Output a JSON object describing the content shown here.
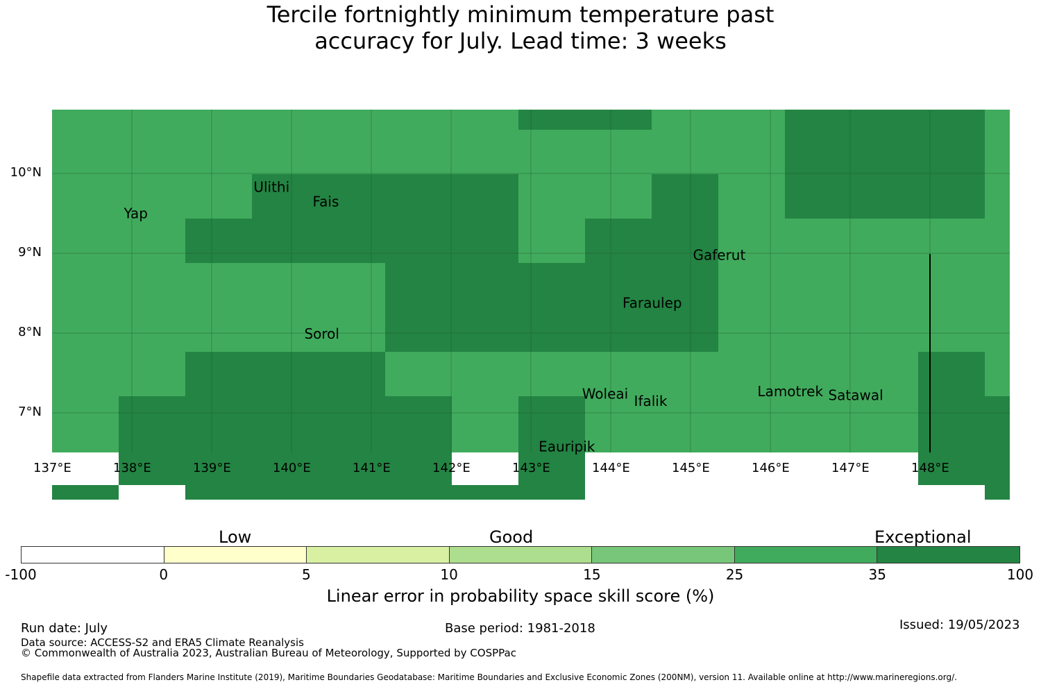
{
  "title": {
    "line1": "Tercile fortnightly minimum temperature past",
    "line2": "accuracy for July. Lead time: 3 weeks"
  },
  "colors": {
    "band_25_35": "#41ab5d",
    "band_35_100": "#238443",
    "grid": "#1f5a2e"
  },
  "axes": {
    "lon_labels": [
      "137°E",
      "138°E",
      "139°E",
      "140°E",
      "141°E",
      "142°E",
      "143°E",
      "144°E",
      "145°E",
      "146°E",
      "147°E",
      "148°E"
    ],
    "lat_labels": [
      "10°N",
      "9°N",
      "8°N",
      "7°N"
    ]
  },
  "places": [
    {
      "name": "Yap",
      "lon": 138.05,
      "lat": 9.5
    },
    {
      "name": "Ulithi",
      "lon": 139.75,
      "lat": 9.83
    },
    {
      "name": "Fais",
      "lon": 140.43,
      "lat": 9.65
    },
    {
      "name": "Gaferut",
      "lon": 145.36,
      "lat": 8.98
    },
    {
      "name": "Faraulep",
      "lon": 144.52,
      "lat": 8.38
    },
    {
      "name": "Sorol",
      "lon": 140.38,
      "lat": 7.99
    },
    {
      "name": "Woleai",
      "lon": 143.93,
      "lat": 7.24
    },
    {
      "name": "Ifalik",
      "lon": 144.5,
      "lat": 7.15
    },
    {
      "name": "Lamotrek",
      "lon": 146.25,
      "lat": 7.27
    },
    {
      "name": "Satawal",
      "lon": 147.07,
      "lat": 7.22
    },
    {
      "name": "Eauripik",
      "lon": 143.45,
      "lat": 6.58
    }
  ],
  "dark_cells": [
    [
      7,
      0
    ],
    [
      8,
      0
    ],
    [
      11,
      0
    ],
    [
      12,
      0
    ],
    [
      13,
      0
    ],
    [
      11,
      1
    ],
    [
      12,
      1
    ],
    [
      13,
      1
    ],
    [
      11,
      2
    ],
    [
      12,
      2
    ],
    [
      13,
      2
    ],
    [
      3,
      2
    ],
    [
      4,
      2
    ],
    [
      5,
      2
    ],
    [
      6,
      2
    ],
    [
      9,
      2
    ],
    [
      2,
      3
    ],
    [
      3,
      3
    ],
    [
      4,
      3
    ],
    [
      5,
      3
    ],
    [
      6,
      3
    ],
    [
      8,
      3
    ],
    [
      9,
      3
    ],
    [
      5,
      4
    ],
    [
      6,
      4
    ],
    [
      7,
      4
    ],
    [
      8,
      4
    ],
    [
      9,
      4
    ],
    [
      5,
      5
    ],
    [
      6,
      5
    ],
    [
      7,
      5
    ],
    [
      8,
      5
    ],
    [
      9,
      5
    ],
    [
      2,
      6
    ],
    [
      3,
      6
    ],
    [
      4,
      6
    ],
    [
      13,
      6
    ],
    [
      1,
      7
    ],
    [
      2,
      7
    ],
    [
      3,
      7
    ],
    [
      4,
      7
    ],
    [
      5,
      7
    ],
    [
      7,
      7
    ],
    [
      13,
      7
    ],
    [
      14,
      7
    ],
    [
      1,
      8
    ],
    [
      2,
      8
    ],
    [
      3,
      8
    ],
    [
      4,
      8
    ],
    [
      5,
      8
    ],
    [
      7,
      8
    ],
    [
      13,
      8
    ],
    [
      14,
      8
    ],
    [
      0,
      9
    ],
    [
      2,
      9
    ],
    [
      3,
      9
    ],
    [
      4,
      9
    ],
    [
      5,
      9
    ],
    [
      6,
      9
    ],
    [
      7,
      9
    ],
    [
      14,
      9
    ]
  ],
  "colorbar": {
    "categories": [
      "Low",
      "Good",
      "Exceptional"
    ],
    "ticks": [
      "-100",
      "0",
      "5",
      "10",
      "15",
      "25",
      "35",
      "100"
    ],
    "colors": [
      "#ffffff",
      "#ffffcc",
      "#d9f0a3",
      "#addd8e",
      "#78c679",
      "#41ab5d",
      "#238443"
    ],
    "label": "Linear error in probability space skill score (%)"
  },
  "footer": {
    "run_date": "Run date: July",
    "base_period": "Base period: 1981-2018",
    "issued": "Issued: 19/05/2023",
    "data_source": "Data source: ACCESS-S2 and ERA5 Climate Reanalysis",
    "copyright": "© Commonwealth of Australia 2023, Australian Bureau of Meteorology, Supported by COSPPac",
    "shapefile": "Shapefile data extracted from Flanders Marine Institute (2019), Maritime Boundaries Geodatabase: Maritime Boundaries and Exclusive Economic Zones (200NM), version 11. Available online at http://www.marineregions.org/."
  }
}
